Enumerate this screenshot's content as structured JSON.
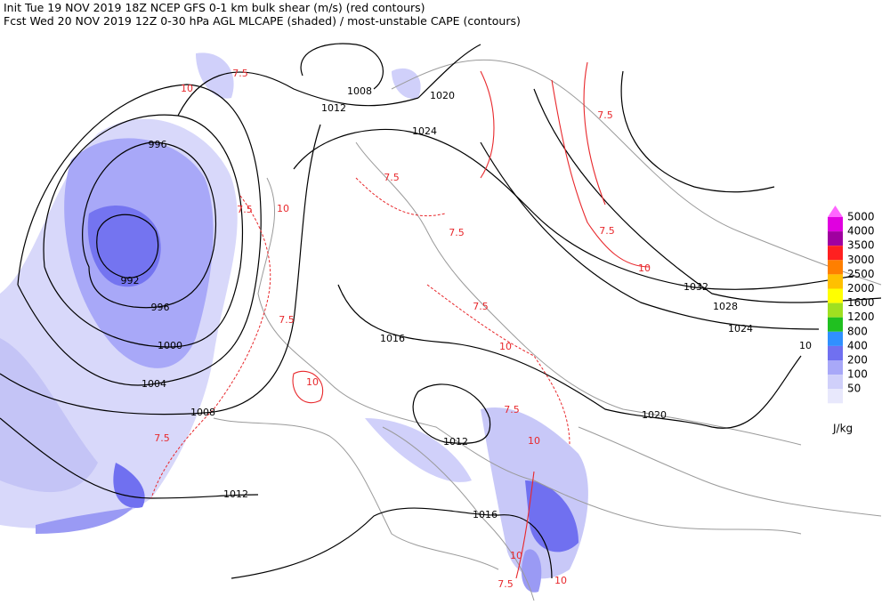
{
  "header": {
    "line1": "Init  Tue 19 NOV 2019 18Z  NCEP GFS 0-1 km bulk shear (m/s) (red contours)",
    "line2": "Fcst Wed 20 NOV 2019 12Z  0-30 hPa AGL MLCAPE (shaded) / most-unstable CAPE (contours)"
  },
  "legend": {
    "unit": "J/kg",
    "levels": [
      {
        "label": "5000",
        "color": "#ff66ff"
      },
      {
        "label": "4000",
        "color": "#e000e0"
      },
      {
        "label": "3500",
        "color": "#a000a0"
      },
      {
        "label": "3000",
        "color": "#ff2020"
      },
      {
        "label": "2500",
        "color": "#ff7f00"
      },
      {
        "label": "2000",
        "color": "#ffc000"
      },
      {
        "label": "1600",
        "color": "#ffff00"
      },
      {
        "label": "1200",
        "color": "#a0e020"
      },
      {
        "label": "800",
        "color": "#20c020"
      },
      {
        "label": "400",
        "color": "#3090ff"
      },
      {
        "label": "200",
        "color": "#7070f0"
      },
      {
        "label": "100",
        "color": "#a8a8f8"
      },
      {
        "label": "50",
        "color": "#d0d0fa"
      }
    ],
    "bottom_color": "#e8e8fc"
  },
  "isobar_labels": [
    1008,
    1012,
    1020,
    1024,
    996,
    992,
    996,
    1000,
    1004,
    1008,
    1012,
    1012,
    1016,
    1016,
    1020,
    1024,
    1028,
    1032,
    10
  ],
  "shear_labels": [
    10,
    7.5,
    7.5,
    10,
    7.5,
    7.5,
    10,
    7.5,
    7.5,
    10,
    7.5,
    10,
    7.5,
    10,
    7.5,
    10,
    7.5,
    10,
    7.5
  ]
}
